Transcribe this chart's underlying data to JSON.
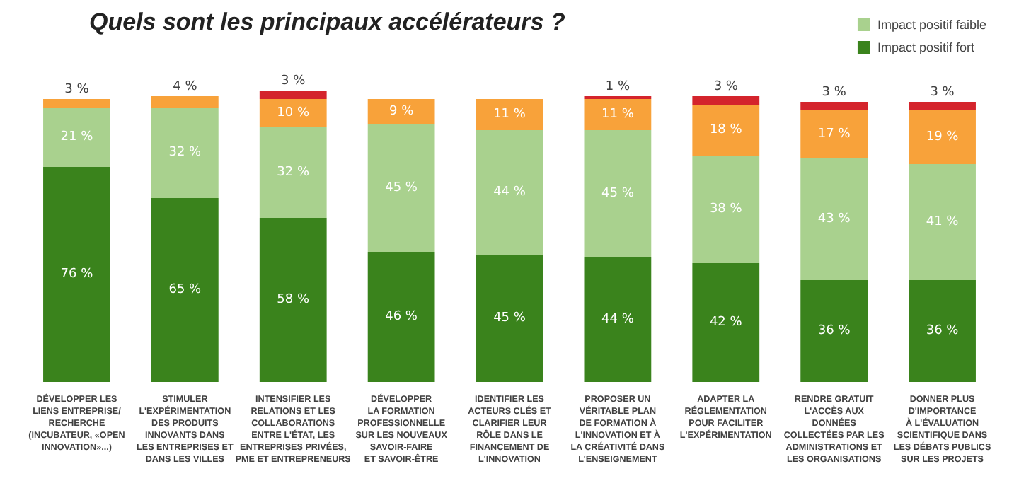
{
  "chart_data": {
    "type": "bar",
    "stacked": true,
    "title": "Quels sont les principaux accélérateurs ?",
    "legend": "top right",
    "categories": [
      "DÉVELOPPER LES\nLIENS ENTREPRISE/\nRECHERCHE\n(INCUBATEUR, «OPEN\nINNOVATION»...)",
      "STIMULER\nL'EXPÉRIMENTATION\nDES PRODUITS\nINNOVANTS DANS\nLES ENTREPRISES ET\nDANS LES VILLES",
      "INTENSIFIER LES\nRELATIONS ET LES\nCOLLABORATIONS\nENTRE L'ÉTAT, LES\nENTREPRISES PRIVÉES,\nPME ET ENTREPRENEURS",
      "DÉVELOPPER\nLA FORMATION\nPROFESSIONNELLE\nSUR LES NOUVEAUX\nSAVOIR-FAIRE\nET SAVOIR-ÊTRE",
      "IDENTIFIER LES\nACTEURS CLÉS ET\nCLARIFIER LEUR\nRÔLE DANS LE\nFINANCEMENT DE\nL'INNOVATION",
      "PROPOSER UN\nVÉRITABLE PLAN\nDE FORMATION À\nL'INNOVATION ET À\nLA CRÉATIVITÉ DANS\nL'ENSEIGNEMENT",
      "ADAPTER LA\nRÉGLEMENTATION\nPOUR FACILITER\nL'EXPÉRIMENTATION",
      "RENDRE GRATUIT\nL'ACCÈS AUX\nDONNÉES\nCOLLECTÉES PAR LES\nADMINISTRATIONS ET\nLES ORGANISATIONS",
      "DONNER PLUS\nD'IMPORTANCE\nÀ L'ÉVALUATION\nSCIENTIFIQUE DANS\nLES DÉBATS PUBLICS\nSUR LES PROJETS"
    ],
    "series": [
      {
        "name": "Impact positif fort",
        "color": "#3a831c",
        "values": [
          76,
          65,
          58,
          46,
          45,
          44,
          42,
          36,
          36
        ],
        "value_labels": [
          "76 %",
          "65 %",
          "58 %",
          "46 %",
          "45 %",
          "44 %",
          "42 %",
          "36 %",
          "36 %"
        ]
      },
      {
        "name": "Impact positif faible",
        "color": "#a9d18e",
        "values": [
          21,
          32,
          32,
          45,
          44,
          45,
          38,
          43,
          41
        ],
        "value_labels": [
          "21 %",
          "32 %",
          "32 %",
          "45 %",
          "44 %",
          "45 %",
          "38 %",
          "43 %",
          "41 %"
        ]
      },
      {
        "color": "#f8a23a",
        "values": [
          3,
          4,
          10,
          9,
          11,
          11,
          18,
          17,
          19
        ],
        "value_labels": [
          "3 %",
          "4 %",
          "10 %",
          "9 %",
          "11 %",
          "11 %",
          "18 %",
          "17 %",
          "19 %"
        ]
      },
      {
        "color": "#d4242c",
        "values": [
          null,
          null,
          3,
          null,
          null,
          1,
          3,
          3,
          3
        ],
        "value_labels": [
          null,
          null,
          "3 %",
          null,
          null,
          "1 %",
          "3 %",
          "3 %",
          "3 %"
        ]
      }
    ]
  }
}
